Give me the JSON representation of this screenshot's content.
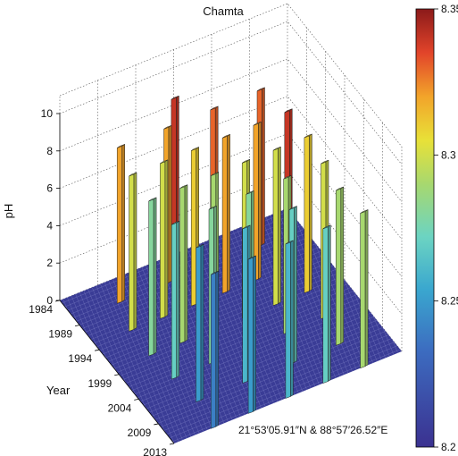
{
  "chart_data": {
    "type": "bar3d",
    "title": "Chamta",
    "zlabel": "pH",
    "ylabel": "Year",
    "annotation": "21°53′05.91″N & 88°57′26.52″E",
    "z_ticks": [
      "0",
      "2",
      "4",
      "6",
      "8",
      "10"
    ],
    "zlim": [
      0,
      10
    ],
    "year_ticks": [
      "1984",
      "1989",
      "1994",
      "1999",
      "2004",
      "2009",
      "2013"
    ],
    "colorbar": {
      "ticks": [
        "8.2",
        "8.25",
        "8.3",
        "8.35"
      ],
      "range": [
        8.2,
        8.35
      ]
    },
    "floor_color": "#3a3c96",
    "bars": [
      {
        "year": 1984,
        "value": 8.34
      },
      {
        "year": 1988,
        "value": 8.32
      },
      {
        "year": 1988,
        "value": 8.32
      },
      {
        "year": 1988,
        "value": 8.33
      },
      {
        "year": 1988,
        "value": 8.33
      },
      {
        "year": 1993,
        "value": 8.3
      },
      {
        "year": 1993,
        "value": 8.3
      },
      {
        "year": 1993,
        "value": 8.31
      },
      {
        "year": 1993,
        "value": 8.32
      },
      {
        "year": 1993,
        "value": 8.32
      },
      {
        "year": 1993,
        "value": 8.34
      },
      {
        "year": 1998,
        "value": 8.28
      },
      {
        "year": 1998,
        "value": 8.29
      },
      {
        "year": 1998,
        "value": 8.29
      },
      {
        "year": 1998,
        "value": 8.3
      },
      {
        "year": 1998,
        "value": 8.3
      },
      {
        "year": 1998,
        "value": 8.31
      },
      {
        "year": 2003,
        "value": 8.27
      },
      {
        "year": 2003,
        "value": 8.28
      },
      {
        "year": 2003,
        "value": 8.28
      },
      {
        "year": 2003,
        "value": 8.29
      },
      {
        "year": 2003,
        "value": 8.3
      },
      {
        "year": 2008,
        "value": 8.25
      },
      {
        "year": 2008,
        "value": 8.26
      },
      {
        "year": 2008,
        "value": 8.27
      },
      {
        "year": 2008,
        "value": 8.29
      },
      {
        "year": 2013,
        "value": 8.24
      },
      {
        "year": 2013,
        "value": 8.25
      },
      {
        "year": 2013,
        "value": 8.26
      },
      {
        "year": 2013,
        "value": 8.27
      },
      {
        "year": 2013,
        "value": 8.29
      }
    ]
  }
}
